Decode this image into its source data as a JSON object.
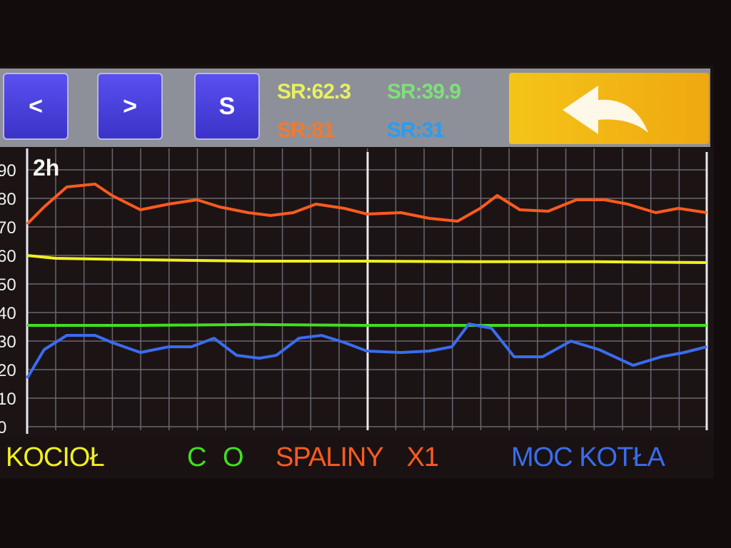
{
  "toolbar": {
    "prev_label": "<",
    "next_label": ">",
    "s_label": "S",
    "back_icon": "back-arrow-icon",
    "sr": [
      {
        "text": "SR:62.3",
        "color": "#e8f060"
      },
      {
        "text": "SR:39.9",
        "color": "#7ee07a"
      },
      {
        "text": "SR:81",
        "color": "#f07a30"
      },
      {
        "text": "SR:31",
        "color": "#2a9cf0"
      }
    ]
  },
  "chart_data": {
    "type": "line",
    "period_label": "2h",
    "x_unit": "minutes",
    "ylim": [
      0,
      90
    ],
    "yticks": [
      "90",
      "80",
      "70",
      "60",
      "50",
      "40",
      "30",
      "20",
      "10",
      "0"
    ],
    "grid": true,
    "legend_placement": "bottom",
    "series": [
      {
        "name": "KOCIOŁ",
        "color": "#f0f020",
        "x": [
          0,
          5,
          20,
          40,
          60,
          80,
          100,
          120
        ],
        "y": [
          60,
          59,
          58.5,
          58,
          58,
          57.8,
          57.8,
          57.5
        ]
      },
      {
        "name": "C O",
        "color": "#40e020",
        "x": [
          0,
          20,
          40,
          60,
          80,
          100,
          120
        ],
        "y": [
          35.5,
          35.5,
          35.8,
          35.5,
          35.5,
          35.5,
          35.5
        ]
      },
      {
        "name": "SPALINY X1",
        "color": "#ff5a20",
        "x": [
          0,
          3,
          7,
          12,
          15,
          20,
          25,
          30,
          34,
          39,
          43,
          47,
          51,
          56,
          60,
          66,
          71,
          76,
          80,
          83,
          87,
          92,
          97,
          102,
          106,
          111,
          115,
          120
        ],
        "y": [
          71,
          77,
          84,
          85,
          81,
          76,
          78,
          79.5,
          77,
          75,
          74,
          75,
          78,
          76.5,
          74.5,
          75,
          73,
          72,
          76.5,
          81,
          76,
          75.5,
          79.5,
          79.5,
          78,
          75,
          76.5,
          75
        ]
      },
      {
        "name": "MOC KOTŁA",
        "color": "#3a6cf0",
        "x": [
          0,
          3,
          7,
          12,
          15,
          20,
          25,
          29,
          33,
          37,
          41,
          44,
          48,
          52,
          56,
          60,
          66,
          71,
          75,
          78,
          82,
          86,
          91,
          96,
          101,
          107,
          112,
          116,
          120
        ],
        "y": [
          17,
          27,
          32,
          32,
          29.5,
          26,
          28,
          28,
          31,
          25,
          24,
          25,
          31,
          32,
          29.5,
          26.5,
          26,
          26.5,
          28,
          36,
          34.5,
          24.5,
          24.5,
          30,
          27,
          21.5,
          24.5,
          26,
          28
        ]
      }
    ]
  }
}
